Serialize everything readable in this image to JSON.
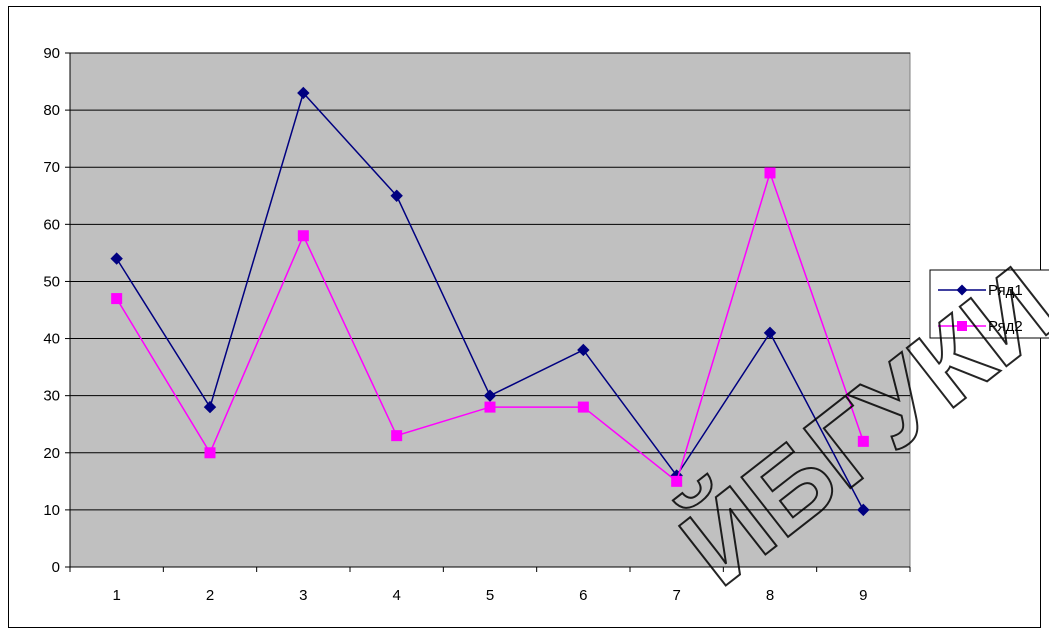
{
  "chart_data": {
    "type": "line",
    "categories": [
      "1",
      "2",
      "3",
      "4",
      "5",
      "6",
      "7",
      "8",
      "9"
    ],
    "ylim": [
      0,
      90
    ],
    "yticks": [
      0,
      10,
      20,
      30,
      40,
      50,
      60,
      70,
      80,
      90
    ],
    "grid": true,
    "legend_position": "right",
    "plot_background": "#C0C0C0",
    "series": [
      {
        "name": "Ряд1",
        "values": [
          54,
          28,
          83,
          65,
          30,
          38,
          16,
          41,
          10
        ],
        "color": "#000080",
        "marker": "diamond"
      },
      {
        "name": "Ряд2",
        "values": [
          47,
          20,
          58,
          23,
          28,
          28,
          15,
          69,
          22
        ],
        "color": "#FF00FF",
        "marker": "square"
      }
    ]
  },
  "watermark": {
    "text": "ЙБГУКИ"
  }
}
